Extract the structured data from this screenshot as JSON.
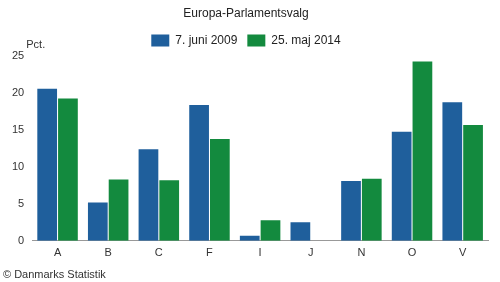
{
  "chart_data": {
    "type": "bar",
    "title": "Europa-Parlamentsvalg",
    "y_label": "Pct.",
    "source": "© Danmarks Statistik",
    "categories": [
      "A",
      "B",
      "C",
      "F",
      "I",
      "J",
      "N",
      "O",
      "V"
    ],
    "series": [
      {
        "name": "7. juni 2009",
        "color": "#1f5f9c",
        "values": [
          20.6,
          5.2,
          12.4,
          18.4,
          0.7,
          2.5,
          8.1,
          14.8,
          18.8
        ]
      },
      {
        "name": "25. maj 2014",
        "color": "#138a3e",
        "values": [
          19.3,
          8.3,
          8.2,
          13.8,
          2.8,
          null,
          8.4,
          24.3,
          15.7
        ]
      }
    ],
    "ylim": [
      0,
      25
    ],
    "yticks": [
      0,
      5,
      10,
      15,
      20,
      25
    ],
    "grid": false,
    "legend": "top"
  }
}
